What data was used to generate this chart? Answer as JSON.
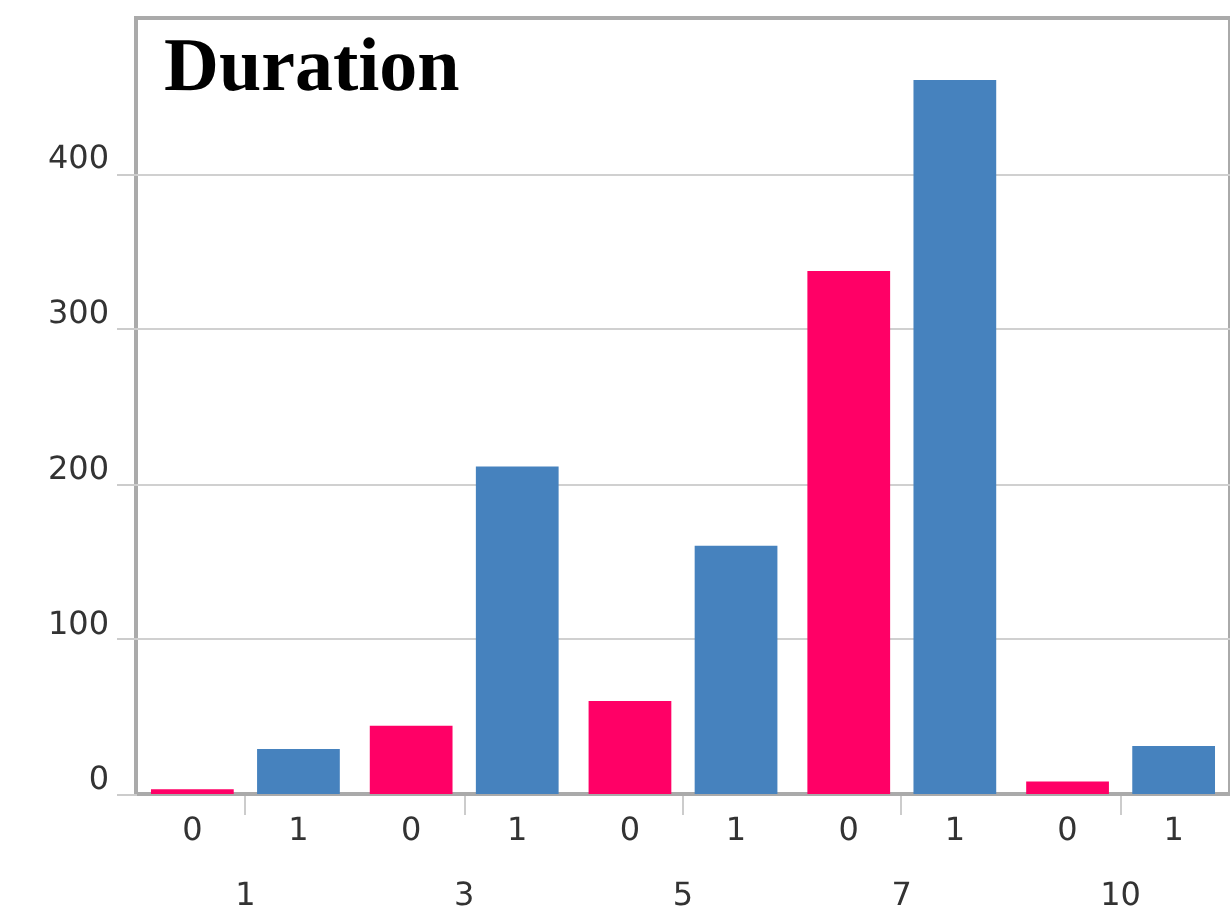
{
  "chart_data": {
    "type": "bar",
    "title": "Duration",
    "categories": [
      "1",
      "3",
      "5",
      "7",
      "10"
    ],
    "series": [
      {
        "name": "0",
        "color": "#ff0066",
        "values": [
          3,
          44,
          60,
          337,
          8
        ]
      },
      {
        "name": "1",
        "color": "#4682be",
        "values": [
          29,
          211,
          160,
          460,
          31
        ]
      }
    ],
    "ylim": [
      0,
      500
    ],
    "yticks": [
      0,
      100,
      200,
      300,
      400
    ],
    "grid": "y",
    "legend": false
  }
}
